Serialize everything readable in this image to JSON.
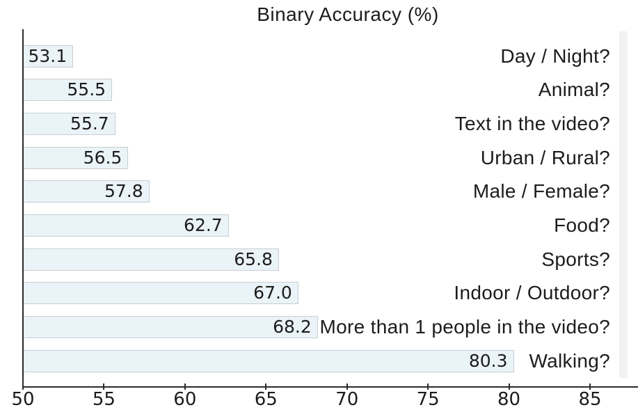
{
  "chart_data": {
    "type": "bar",
    "orientation": "horizontal",
    "title": "Binary Accuracy (%)",
    "categories": [
      "Day / Night?",
      "Animal?",
      "Text in the video?",
      "Urban / Rural?",
      "Male / Female?",
      "Food?",
      "Sports?",
      "Indoor / Outdoor?",
      "More than 1 people in the video?",
      "Walking?"
    ],
    "values": [
      53.1,
      55.5,
      55.7,
      56.5,
      57.8,
      62.7,
      65.8,
      67.0,
      68.2,
      80.3
    ],
    "value_labels": [
      "53.1",
      "55.5",
      "55.7",
      "56.5",
      "57.8",
      "62.7",
      "65.8",
      "67.0",
      "68.2",
      "80.3"
    ],
    "xlabel": "",
    "ylabel": "",
    "xlim": [
      50,
      88
    ],
    "xticks": [
      50,
      55,
      60,
      65,
      70,
      75,
      80,
      85
    ],
    "xtick_labels": [
      "50",
      "55",
      "60",
      "65",
      "70",
      "75",
      "80",
      "85"
    ],
    "grid": false,
    "legend": null,
    "value_label_position": "inside-end",
    "category_label_position": "right",
    "bar_color": "#eaf3f7",
    "bar_edge_color": "#c9ced1",
    "axis_color": "#2b2b2b",
    "text_color": "#1c1c1c",
    "right_strip_color": "#f2f2f2"
  }
}
